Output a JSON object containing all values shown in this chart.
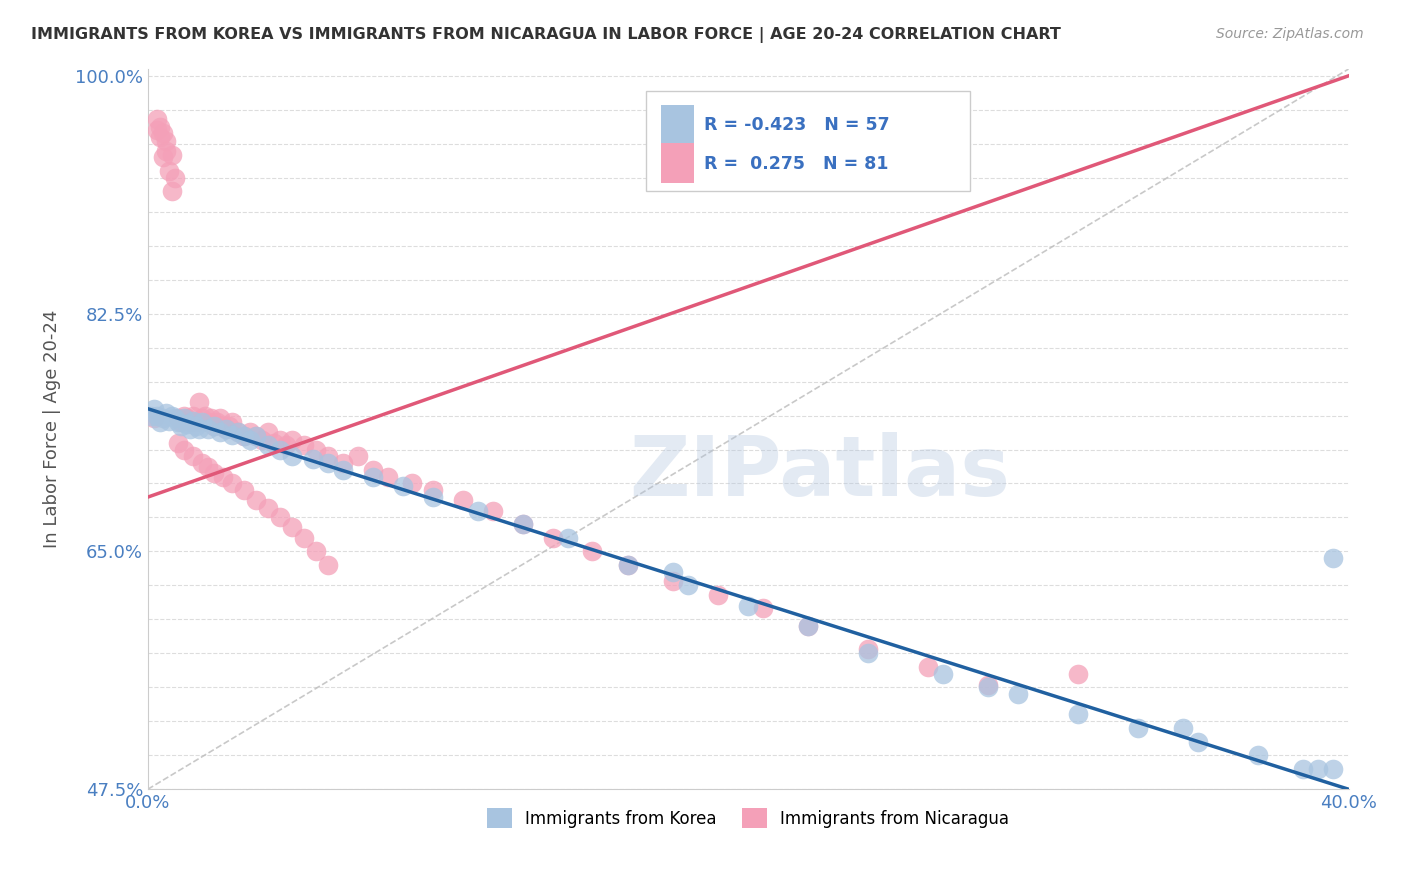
{
  "title": "IMMIGRANTS FROM KOREA VS IMMIGRANTS FROM NICARAGUA IN LABOR FORCE | AGE 20-24 CORRELATION CHART",
  "source": "Source: ZipAtlas.com",
  "ylabel": "In Labor Force | Age 20-24",
  "xmin": 0.0,
  "xmax": 0.4,
  "ymin": 0.475,
  "ymax": 1.005,
  "korea_R": -0.423,
  "korea_N": 57,
  "nicaragua_R": 0.275,
  "nicaragua_N": 81,
  "korea_color": "#a8c4e0",
  "nicaragua_color": "#f4a0b8",
  "korea_line_color": "#2060a0",
  "nicaragua_line_color": "#e05878",
  "diagonal_color": "#bbbbbb",
  "background_color": "#ffffff",
  "grid_color": "#dddddd",
  "watermark": "ZIPatlas",
  "korea_x": [
    0.001,
    0.002,
    0.003,
    0.004,
    0.005,
    0.006,
    0.007,
    0.008,
    0.009,
    0.01,
    0.011,
    0.012,
    0.013,
    0.014,
    0.015,
    0.016,
    0.017,
    0.018,
    0.02,
    0.022,
    0.024,
    0.026,
    0.028,
    0.03,
    0.032,
    0.034,
    0.036,
    0.04,
    0.044,
    0.048,
    0.055,
    0.06,
    0.065,
    0.075,
    0.085,
    0.095,
    0.11,
    0.125,
    0.14,
    0.16,
    0.18,
    0.2,
    0.22,
    0.24,
    0.265,
    0.29,
    0.31,
    0.33,
    0.35,
    0.37,
    0.385,
    0.39,
    0.395,
    0.345,
    0.28,
    0.175,
    0.395
  ],
  "korea_y": [
    0.75,
    0.755,
    0.75,
    0.745,
    0.748,
    0.752,
    0.746,
    0.75,
    0.748,
    0.745,
    0.742,
    0.748,
    0.744,
    0.74,
    0.746,
    0.742,
    0.74,
    0.745,
    0.74,
    0.742,
    0.738,
    0.74,
    0.736,
    0.738,
    0.735,
    0.732,
    0.735,
    0.728,
    0.725,
    0.72,
    0.718,
    0.715,
    0.71,
    0.705,
    0.698,
    0.69,
    0.68,
    0.67,
    0.66,
    0.64,
    0.625,
    0.61,
    0.595,
    0.575,
    0.56,
    0.545,
    0.53,
    0.52,
    0.51,
    0.5,
    0.49,
    0.49,
    0.49,
    0.52,
    0.55,
    0.635,
    0.645
  ],
  "nicaragua_x": [
    0.002,
    0.003,
    0.004,
    0.005,
    0.006,
    0.007,
    0.008,
    0.009,
    0.01,
    0.011,
    0.012,
    0.013,
    0.014,
    0.015,
    0.016,
    0.017,
    0.018,
    0.019,
    0.02,
    0.021,
    0.022,
    0.023,
    0.024,
    0.025,
    0.026,
    0.027,
    0.028,
    0.03,
    0.032,
    0.034,
    0.036,
    0.038,
    0.04,
    0.042,
    0.044,
    0.046,
    0.048,
    0.052,
    0.056,
    0.06,
    0.065,
    0.07,
    0.075,
    0.08,
    0.088,
    0.095,
    0.105,
    0.115,
    0.125,
    0.135,
    0.148,
    0.16,
    0.175,
    0.19,
    0.205,
    0.22,
    0.24,
    0.26,
    0.28,
    0.01,
    0.012,
    0.015,
    0.018,
    0.02,
    0.022,
    0.025,
    0.028,
    0.032,
    0.036,
    0.04,
    0.044,
    0.048,
    0.052,
    0.056,
    0.06,
    0.003,
    0.004,
    0.005,
    0.006,
    0.008,
    0.31
  ],
  "nicaragua_y": [
    0.748,
    0.96,
    0.955,
    0.94,
    0.945,
    0.93,
    0.915,
    0.925,
    0.748,
    0.745,
    0.75,
    0.748,
    0.745,
    0.75,
    0.745,
    0.76,
    0.748,
    0.75,
    0.745,
    0.748,
    0.742,
    0.745,
    0.748,
    0.742,
    0.74,
    0.742,
    0.745,
    0.738,
    0.735,
    0.738,
    0.735,
    0.732,
    0.738,
    0.73,
    0.732,
    0.728,
    0.732,
    0.728,
    0.725,
    0.72,
    0.715,
    0.72,
    0.71,
    0.705,
    0.7,
    0.695,
    0.688,
    0.68,
    0.67,
    0.66,
    0.65,
    0.64,
    0.628,
    0.618,
    0.608,
    0.595,
    0.578,
    0.565,
    0.552,
    0.73,
    0.725,
    0.72,
    0.715,
    0.712,
    0.708,
    0.705,
    0.7,
    0.695,
    0.688,
    0.682,
    0.675,
    0.668,
    0.66,
    0.65,
    0.64,
    0.968,
    0.962,
    0.958,
    0.952,
    0.942,
    0.56
  ],
  "korea_line_x0": 0.0,
  "korea_line_y0": 0.755,
  "korea_line_x1": 0.4,
  "korea_line_y1": 0.475,
  "nic_line_x0": 0.0,
  "nic_line_y0": 0.69,
  "nic_line_x1": 0.4,
  "nic_line_y1": 1.0
}
